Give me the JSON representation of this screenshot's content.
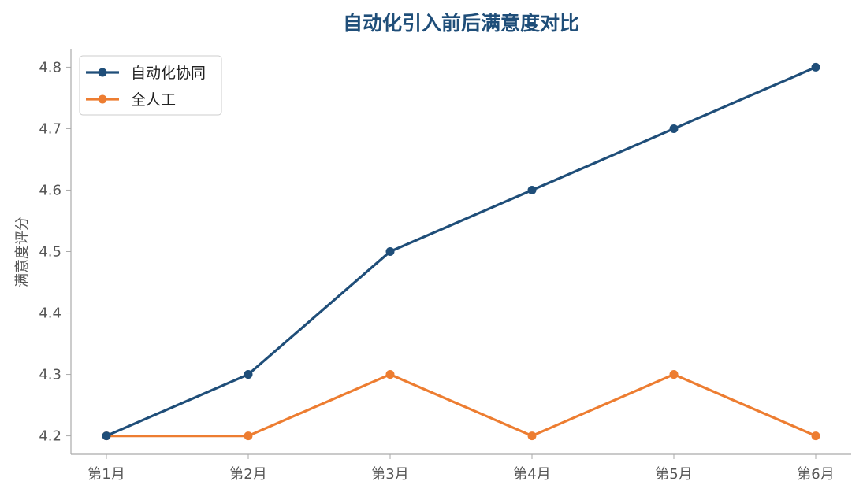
{
  "chart_data": {
    "type": "line",
    "title": "自动化引入前后满意度对比",
    "xlabel": "",
    "ylabel": "满意度评分",
    "categories": [
      "第1月",
      "第2月",
      "第3月",
      "第4月",
      "第5月",
      "第6月"
    ],
    "ylim": [
      4.17,
      4.83
    ],
    "yticks": [
      "4.2",
      "4.3",
      "4.4",
      "4.5",
      "4.6",
      "4.7",
      "4.8"
    ],
    "grid": false,
    "legend_position": "top-left",
    "series": [
      {
        "name": "自动化协同",
        "color": "#1f4e79",
        "values": [
          4.2,
          4.3,
          4.5,
          4.6,
          4.7,
          4.8
        ]
      },
      {
        "name": "全人工",
        "color": "#ed7d31",
        "values": [
          4.2,
          4.2,
          4.3,
          4.2,
          4.3,
          4.2
        ]
      }
    ]
  }
}
